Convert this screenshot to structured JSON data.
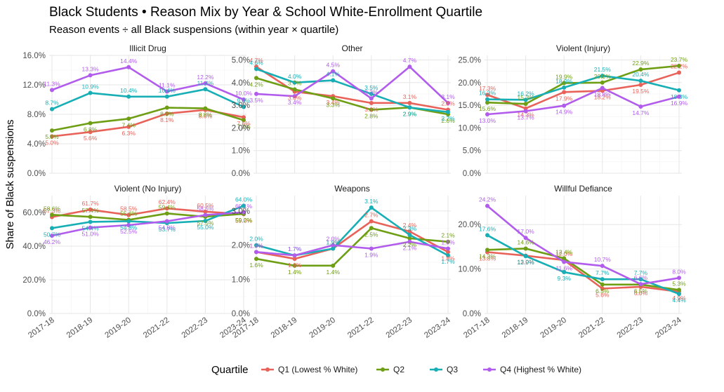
{
  "title": "Black Students • Reason Mix by Year & School White-Enrollment Quartile",
  "subtitle": "Reason events ÷ all Black suspensions (within year × quartile)",
  "ylabel": "Share of Black suspensions",
  "legend": {
    "title": "Quartile",
    "placement": "bottom",
    "items": [
      {
        "name": "Q1 (Lowest % White)",
        "color": "#E8625A"
      },
      {
        "name": "Q2",
        "color": "#6E9E14"
      },
      {
        "name": "Q3",
        "color": "#17AFB5"
      },
      {
        "name": "Q4 (Highest % White)",
        "color": "#B15CEC"
      }
    ]
  },
  "chart_data": {
    "type": "line",
    "facets": [
      {
        "title": "Illicit Drug",
        "yticks": [
          0,
          4,
          8,
          12,
          16
        ],
        "ytick_labels": [
          "0.0%",
          "4.0%",
          "8.0%",
          "12.0%",
          "16.0%"
        ],
        "ylim": [
          0,
          16
        ],
        "x": [
          "2017-18",
          "2018-19",
          "2019-20",
          "2021-22",
          "2022-23",
          "2023-24"
        ],
        "series": [
          {
            "name": "Q1 (Lowest % White)",
            "values": [
              5.0,
              5.6,
              6.3,
              8.1,
              8.6,
              7.6
            ],
            "labels": [
              "5.0%",
              "5.6%",
              "6.3%",
              "8.1%",
              "8.6%",
              "7.6%"
            ]
          },
          {
            "name": "Q2",
            "values": [
              5.8,
              6.8,
              7.4,
              8.9,
              8.8,
              7.2
            ],
            "labels": [
              "5.8%",
              "6.8%",
              "7.4%",
              "8.9%",
              "8.8%",
              "7.2%"
            ]
          },
          {
            "name": "Q3",
            "values": [
              8.7,
              10.9,
              10.4,
              10.4,
              11.4,
              9.0
            ],
            "labels": [
              "8.7%",
              "10.9%",
              "10.4%",
              "10.4%",
              "11.4%",
              "9.0%"
            ]
          },
          {
            "name": "Q4 (Highest % White)",
            "values": [
              11.3,
              13.3,
              14.4,
              11.1,
              12.2,
              10.0
            ],
            "labels": [
              "11.3%",
              "13.3%",
              "14.4%",
              "11.1%",
              "12.2%",
              "10.0%"
            ]
          }
        ]
      },
      {
        "title": "Other",
        "yticks": [
          0,
          1,
          2,
          3,
          4,
          5
        ],
        "ytick_labels": [
          "0.0%",
          "1.0%",
          "2.0%",
          "3.0%",
          "4.0%",
          "5.0%"
        ],
        "ylim": [
          0,
          5.2
        ],
        "x": [
          "2017-18",
          "2018-19",
          "2019-20",
          "2021-22",
          "2022-23",
          "2023-24"
        ],
        "series": [
          {
            "name": "Q1 (Lowest % White)",
            "values": [
              4.7,
              3.6,
              3.4,
              3.1,
              3.1,
              2.8
            ],
            "labels": [
              "4.7%",
              "3.6%",
              "3.4%",
              "3.1%",
              "3.1%",
              "2.8%"
            ]
          },
          {
            "name": "Q2",
            "values": [
              4.2,
              3.7,
              3.3,
              2.8,
              2.9,
              2.6
            ],
            "labels": [
              "4.2%",
              "3.7%",
              "3.3%",
              "2.8%",
              "2.9%",
              "2.6%"
            ]
          },
          {
            "name": "Q3",
            "values": [
              4.6,
              4.0,
              4.1,
              3.5,
              2.9,
              2.7
            ],
            "labels": [
              "4.6%",
              "4.0%",
              "4.1%",
              "3.5%",
              "2.9%",
              "2.7%"
            ]
          },
          {
            "name": "Q4 (Highest % White)",
            "values": [
              3.5,
              3.4,
              4.5,
              3.3,
              4.7,
              3.1
            ],
            "labels": [
              "3.5%",
              "3.4%",
              "4.5%",
              "3.3%",
              "4.7%",
              "3.1%"
            ]
          }
        ]
      },
      {
        "title": "Violent (Injury)",
        "yticks": [
          0,
          5,
          10,
          15,
          20,
          25
        ],
        "ytick_labels": [
          "0.0%",
          "5.0%",
          "10.0%",
          "15.0%",
          "20.0%",
          "25.0%"
        ],
        "ylim": [
          0,
          26
        ],
        "x": [
          "2017-18",
          "2018-19",
          "2019-20",
          "2021-22",
          "2022-23",
          "2023-24"
        ],
        "series": [
          {
            "name": "Q1 (Lowest % White)",
            "values": [
              17.3,
              14.3,
              17.9,
              18.2,
              19.5,
              22.2
            ],
            "labels": [
              "17.3%",
              "14.3%",
              "17.9%",
              "18.2%",
              "19.5%",
              "22.2%"
            ]
          },
          {
            "name": "Q2",
            "values": [
              15.6,
              15.3,
              19.9,
              20.0,
              22.9,
              23.7
            ],
            "labels": [
              "15.6%",
              "15.3%",
              "19.9%",
              "20.0%",
              "22.9%",
              "23.7%"
            ]
          },
          {
            "name": "Q3",
            "values": [
              16.3,
              16.2,
              18.9,
              21.5,
              20.4,
              18.3
            ],
            "labels": [
              "16.3%",
              "16.2%",
              "18.9%",
              "21.5%",
              "20.4%",
              "18.3%"
            ]
          },
          {
            "name": "Q4 (Highest % White)",
            "values": [
              13.0,
              13.7,
              14.9,
              18.8,
              14.7,
              16.9
            ],
            "labels": [
              "13.0%",
              "13.7%",
              "14.9%",
              "18.8%",
              "14.7%",
              "16.9%"
            ]
          }
        ]
      },
      {
        "title": "Violent (No Injury)",
        "yticks": [
          0,
          20,
          40,
          60
        ],
        "ytick_labels": [
          "0.0%",
          "20.0%",
          "40.0%",
          "60.0%"
        ],
        "ylim": [
          0,
          70
        ],
        "x": [
          "2017-18",
          "2018-19",
          "2019-20",
          "2021-22",
          "2022-23",
          "2023-24"
        ],
        "series": [
          {
            "name": "Q1 (Lowest % White)",
            "values": [
              57.3,
              61.7,
              58.5,
              62.4,
              60.5,
              59.0
            ],
            "labels": [
              "57.3%",
              "61.7%",
              "58.5%",
              "62.4%",
              "60.5%",
              "59.0%"
            ]
          },
          {
            "name": "Q2",
            "values": [
              58.6,
              57.4,
              55.6,
              59.4,
              57.5,
              59.2
            ],
            "labels": [
              "58.6%",
              "57.4%",
              "55.6%",
              "59.4%",
              "57.5%",
              "59.2%"
            ]
          },
          {
            "name": "Q3",
            "values": [
              50.7,
              54.4,
              54.8,
              53.7,
              55.0,
              64.0
            ],
            "labels": [
              "50.7%",
              "54.4%",
              "54.8%",
              "53.7%",
              "55.0%",
              "64.0%"
            ]
          },
          {
            "name": "Q4 (Highest % White)",
            "values": [
              46.2,
              51.0,
              52.5,
              54.8,
              58.5,
              60.1
            ],
            "labels": [
              "46.2%",
              "51.0%",
              "52.5%",
              "54.8%",
              "58.5%",
              "60.1%"
            ]
          }
        ]
      },
      {
        "title": "Weapons",
        "yticks": [
          0,
          1,
          2,
          3
        ],
        "ytick_labels": [
          "0.0%",
          "1.0%",
          "2.0%",
          "3.0%"
        ],
        "ylim": [
          0,
          3.45
        ],
        "x": [
          "2017-18",
          "2018-19",
          "2019-20",
          "2021-22",
          "2022-23",
          "2023-24"
        ],
        "series": [
          {
            "name": "Q1 (Lowest % White)",
            "values": [
              1.8,
              1.6,
              1.9,
              2.7,
              2.4,
              1.8
            ],
            "labels": [
              "1.8%",
              "1.6%",
              "1.9%",
              "2.7%",
              "2.4%",
              "1.8%"
            ]
          },
          {
            "name": "Q2",
            "values": [
              1.6,
              1.4,
              1.4,
              2.5,
              2.2,
              2.1
            ],
            "labels": [
              "1.6%",
              "1.4%",
              "1.4%",
              "2.5%",
              "2.2%",
              "2.1%"
            ]
          },
          {
            "name": "Q3",
            "values": [
              2.0,
              1.7,
              1.9,
              3.1,
              2.3,
              1.7
            ],
            "labels": [
              "2.0%",
              "1.7%",
              "1.9%",
              "3.1%",
              "2.3%",
              "1.7%"
            ]
          },
          {
            "name": "Q4 (Highest % White)",
            "values": [
              1.8,
              1.7,
              2.0,
              1.9,
              2.1,
              1.9
            ],
            "labels": [
              "1.8%",
              "1.7%",
              "2.0%",
              "1.9%",
              "2.1%",
              "1.9%"
            ]
          }
        ]
      },
      {
        "title": "Willful Defiance",
        "yticks": [
          0,
          10,
          20
        ],
        "ytick_labels": [
          "0.0%",
          "10.0%",
          "20.0%"
        ],
        "ylim": [
          0,
          26.5
        ],
        "x": [
          "2017-18",
          "2018-19",
          "2019-20",
          "2021-22",
          "2022-23",
          "2023-24"
        ],
        "series": [
          {
            "name": "Q1 (Lowest % White)",
            "values": [
              13.8,
              13.0,
              12.0,
              5.6,
              6.0,
              4.9
            ],
            "labels": [
              "13.8%",
              "13.0%",
              "12.0%",
              "5.6%",
              "6.0%",
              "4.9%"
            ]
          },
          {
            "name": "Q2",
            "values": [
              14.3,
              14.6,
              12.4,
              6.5,
              6.5,
              5.3
            ],
            "labels": [
              "14.3%",
              "14.6%",
              "12.4%",
              "6.5%",
              "6.5%",
              "5.3%"
            ]
          },
          {
            "name": "Q3",
            "values": [
              17.6,
              12.9,
              9.3,
              7.7,
              7.7,
              4.4
            ],
            "labels": [
              "17.6%",
              "12.9%",
              "9.3%",
              "7.7%",
              "7.7%",
              "4.4%"
            ]
          },
          {
            "name": "Q4 (Highest % White)",
            "values": [
              24.2,
              17.0,
              11.6,
              10.7,
              6.6,
              8.0
            ],
            "labels": [
              "24.2%",
              "17.0%",
              "11.6%",
              "10.7%",
              "6.6%",
              "8.0%"
            ]
          }
        ]
      }
    ]
  }
}
